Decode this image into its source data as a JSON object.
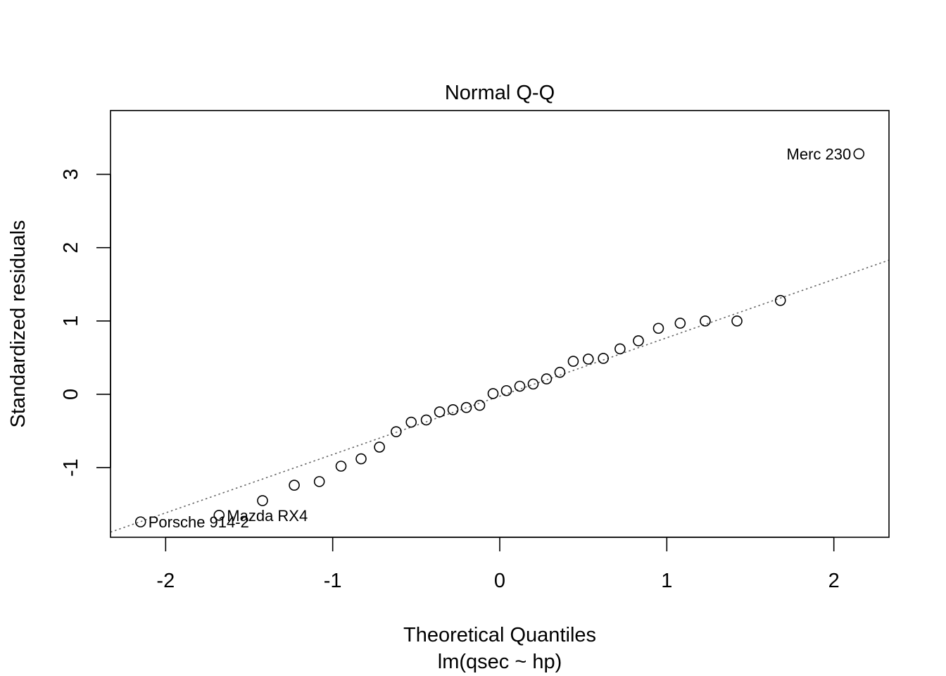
{
  "chart_data": {
    "type": "scatter",
    "title": "Normal Q-Q",
    "xlabel": "Theoretical Quantiles",
    "sublabel": "lm(qsec ~ hp)",
    "ylabel": "Standardized residuals",
    "xlim": [
      -2.33,
      2.33
    ],
    "ylim": [
      -1.95,
      3.87
    ],
    "x_ticks": [
      -2,
      -1,
      0,
      1,
      2
    ],
    "x_tick_labels": [
      "-2",
      "-1",
      "0",
      "1",
      "2"
    ],
    "y_ticks": [
      -1,
      0,
      1,
      2,
      3
    ],
    "y_tick_labels": [
      "-1",
      "0",
      "1",
      "2",
      "3"
    ],
    "grid": false,
    "reference_line": {
      "style": "dotted",
      "color": "#666666",
      "points": [
        [
          -2.33,
          -1.88
        ],
        [
          2.33,
          1.83
        ]
      ]
    },
    "points": [
      {
        "x": -2.15,
        "y": -1.74
      },
      {
        "x": -1.68,
        "y": -1.65
      },
      {
        "x": -1.42,
        "y": -1.45
      },
      {
        "x": -1.23,
        "y": -1.24
      },
      {
        "x": -1.08,
        "y": -1.19
      },
      {
        "x": -0.95,
        "y": -0.98
      },
      {
        "x": -0.83,
        "y": -0.88
      },
      {
        "x": -0.72,
        "y": -0.72
      },
      {
        "x": -0.62,
        "y": -0.51
      },
      {
        "x": -0.53,
        "y": -0.38
      },
      {
        "x": -0.44,
        "y": -0.35
      },
      {
        "x": -0.36,
        "y": -0.24
      },
      {
        "x": -0.28,
        "y": -0.21
      },
      {
        "x": -0.2,
        "y": -0.18
      },
      {
        "x": -0.12,
        "y": -0.15
      },
      {
        "x": -0.04,
        "y": 0.01
      },
      {
        "x": 0.04,
        "y": 0.05
      },
      {
        "x": 0.12,
        "y": 0.11
      },
      {
        "x": 0.2,
        "y": 0.14
      },
      {
        "x": 0.28,
        "y": 0.21
      },
      {
        "x": 0.36,
        "y": 0.3
      },
      {
        "x": 0.44,
        "y": 0.45
      },
      {
        "x": 0.53,
        "y": 0.48
      },
      {
        "x": 0.62,
        "y": 0.49
      },
      {
        "x": 0.72,
        "y": 0.62
      },
      {
        "x": 0.83,
        "y": 0.73
      },
      {
        "x": 0.95,
        "y": 0.9
      },
      {
        "x": 1.08,
        "y": 0.97
      },
      {
        "x": 1.23,
        "y": 1.0
      },
      {
        "x": 1.42,
        "y": 1.0
      },
      {
        "x": 1.68,
        "y": 1.28
      },
      {
        "x": 2.15,
        "y": 3.28
      }
    ],
    "annotations": [
      {
        "text": "Porsche 914-2",
        "x": -2.15,
        "y": -1.74,
        "side": "right"
      },
      {
        "text": "Mazda RX4",
        "x": -1.68,
        "y": -1.65,
        "side": "right"
      },
      {
        "text": "Merc 230",
        "x": 2.15,
        "y": 3.28,
        "side": "left"
      }
    ]
  }
}
